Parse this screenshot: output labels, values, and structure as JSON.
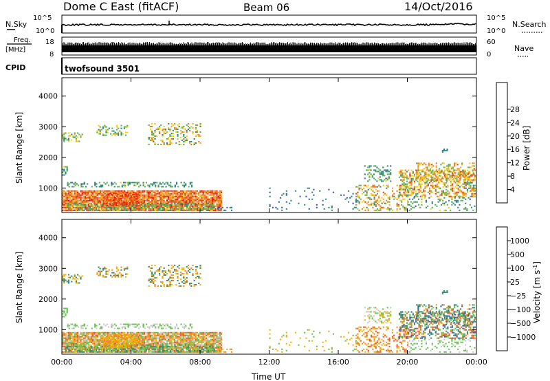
{
  "header": {
    "radar": "Dome C East (fitACF)",
    "beam": "Beam 06",
    "date": "14/Oct/2016"
  },
  "strips": {
    "nsky": {
      "label": "N.Sky",
      "ticks": [
        "10^5",
        "10^0"
      ]
    },
    "nsearch": {
      "label": "N.Search",
      "ticks": [
        "10^5",
        "10^0"
      ]
    },
    "freq": {
      "label_top": "Freq.",
      "label_unit": "[MHz]",
      "ticks": [
        "18",
        "8"
      ]
    },
    "nave": {
      "label": "Nave",
      "ticks": [
        "60",
        "0"
      ]
    },
    "cpid": {
      "label": "CPID",
      "value": "twofsound 3501"
    }
  },
  "chart_data": [
    {
      "type": "heatmap",
      "title": "",
      "ylabel": "Slant Range [km]",
      "xlabel": "",
      "ylim": [
        200,
        4600
      ],
      "yticks": [
        "1000",
        "2000",
        "3000",
        "4000"
      ],
      "ytick_values": [
        1000,
        2000,
        3000,
        4000
      ],
      "xlim_hours": [
        0,
        24
      ],
      "colorbar": {
        "label": "Power [dB]",
        "ticks": [
          "4",
          "8",
          "12",
          "16",
          "20",
          "24",
          "28"
        ],
        "tick_values": [
          4,
          8,
          12,
          16,
          20,
          24,
          28
        ],
        "range": [
          0,
          30
        ],
        "colors": [
          "#1f2bff",
          "#2e5cbd",
          "#2f8a73",
          "#58b058",
          "#f2d200",
          "#f5a623",
          "#f07a16",
          "#e83c14",
          "#ff0000"
        ]
      }
    },
    {
      "type": "heatmap",
      "title": "",
      "ylabel": "Slant Range [km]",
      "xlabel": "Time UT",
      "ylim": [
        200,
        4600
      ],
      "yticks": [
        "1000",
        "2000",
        "3000",
        "4000"
      ],
      "ytick_values": [
        1000,
        2000,
        3000,
        4000
      ],
      "xlim_hours": [
        0,
        24
      ],
      "xticks": [
        "00:00",
        "04:00",
        "08:00",
        "12:00",
        "16:00",
        "20:00",
        "00:00"
      ],
      "xtick_hours": [
        0,
        4,
        8,
        12,
        16,
        20,
        24
      ],
      "colorbar": {
        "label": "Velocity [m s^-1]",
        "ticks": [
          "1000",
          "500",
          "100",
          "25",
          "−25",
          "−100",
          "−500",
          "−1000"
        ],
        "colors": [
          "#2d3ccf",
          "#2f6aa0",
          "#3a8c6a",
          "#64c44a",
          "#c8c8c8",
          "#f4b000",
          "#f58a14",
          "#f05518",
          "#ff0000"
        ]
      }
    }
  ]
}
